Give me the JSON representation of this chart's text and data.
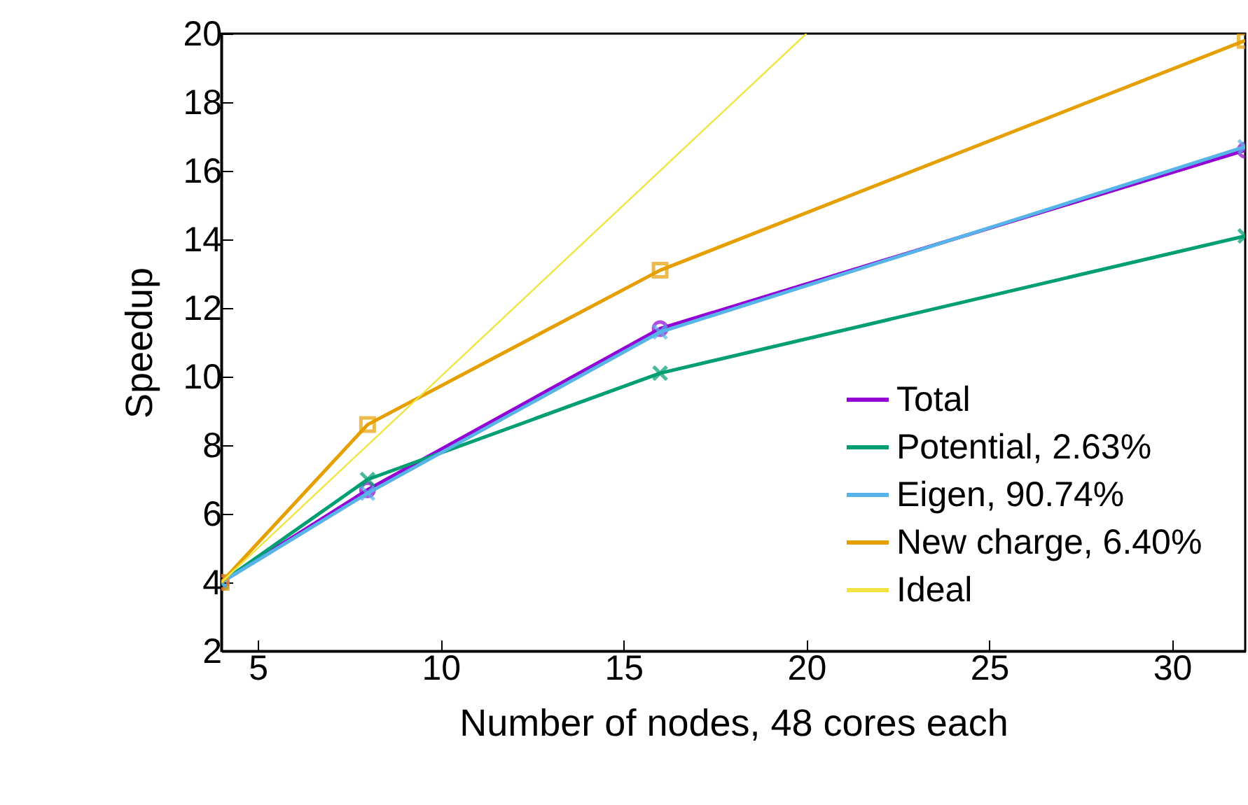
{
  "chart_data": {
    "type": "line",
    "xlabel": "Number of nodes, 48 cores each",
    "ylabel": "Speedup",
    "xlim": [
      4,
      32
    ],
    "xticks": [
      5,
      10,
      15,
      20,
      25,
      30
    ],
    "ylim": [
      2,
      20
    ],
    "yticks": [
      2,
      4,
      6,
      8,
      10,
      12,
      14,
      16,
      18,
      20
    ],
    "grid": false,
    "legend": "bottom right",
    "x": [
      4,
      8,
      16,
      32
    ],
    "series": [
      {
        "name": "Total",
        "color": "#9400d3",
        "marker": "circle",
        "values": [
          4,
          6.7,
          11.4,
          16.6
        ]
      },
      {
        "name": "Potential, 2.63%",
        "color": "#009e73",
        "marker": "cross",
        "values": [
          4,
          7.0,
          10.1,
          14.1
        ]
      },
      {
        "name": "Eigen, 90.74%",
        "color": "#56b4e9",
        "marker": "cross",
        "values": [
          4,
          6.6,
          11.3,
          16.7
        ]
      },
      {
        "name": "New charge, 6.40%",
        "color": "#e69f00",
        "marker": "square",
        "values": [
          4,
          8.6,
          13.1,
          19.8
        ]
      },
      {
        "name": "Ideal",
        "color": "#f0e442",
        "marker": "none",
        "x": [
          4,
          20
        ],
        "values": [
          4,
          20
        ]
      }
    ]
  }
}
